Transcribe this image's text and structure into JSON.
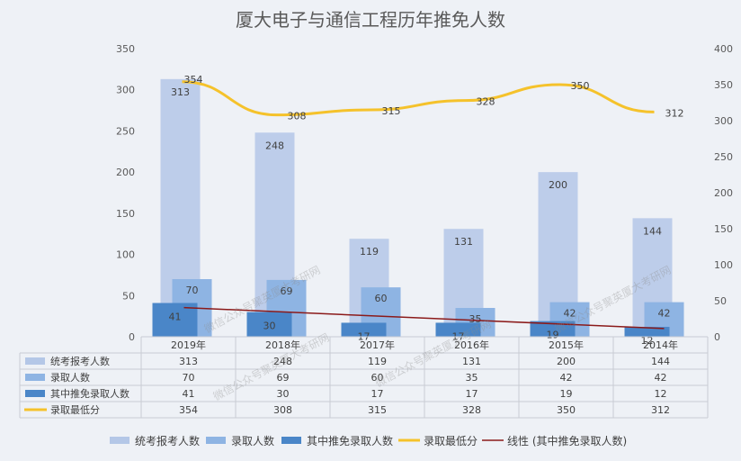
{
  "chart_data": {
    "type": "bar",
    "title": "厦大电子与通信工程历年推免人数",
    "categories": [
      "2019年",
      "2018年",
      "2017年",
      "2016年",
      "2015年",
      "2014年"
    ],
    "y_left": {
      "ylim": [
        0,
        350
      ],
      "ticks": [
        "0",
        "50",
        "100",
        "150",
        "200",
        "250",
        "300",
        "350"
      ]
    },
    "y_right": {
      "ylim": [
        0,
        400
      ],
      "ticks": [
        "0",
        "50",
        "100",
        "150",
        "200",
        "250",
        "300",
        "350",
        "400"
      ]
    },
    "series": [
      {
        "name": "统考报考人数",
        "type": "bar",
        "axis": "left",
        "color": "#b4c7e7",
        "values": [
          313,
          248,
          119,
          131,
          200,
          144
        ]
      },
      {
        "name": "录取人数",
        "type": "bar",
        "axis": "left",
        "color": "#8eb4e3",
        "values": [
          70,
          69,
          60,
          35,
          42,
          42
        ]
      },
      {
        "name": "其中推免录取人数",
        "type": "bar",
        "axis": "left",
        "color": "#4a86c8",
        "values": [
          41,
          30,
          17,
          17,
          19,
          12
        ]
      },
      {
        "name": "录取最低分",
        "type": "line",
        "axis": "right",
        "color": "#f5c22b",
        "values": [
          354,
          308,
          315,
          328,
          350,
          312
        ]
      }
    ],
    "trendline": {
      "name": "线性 (其中推免录取人数)",
      "color": "#8b1a1a",
      "of_series": "其中推免录取人数"
    },
    "data_table": true,
    "legend_position": "bottom",
    "grid": false
  },
  "watermark": "微信公众号聚英厦大考研网"
}
